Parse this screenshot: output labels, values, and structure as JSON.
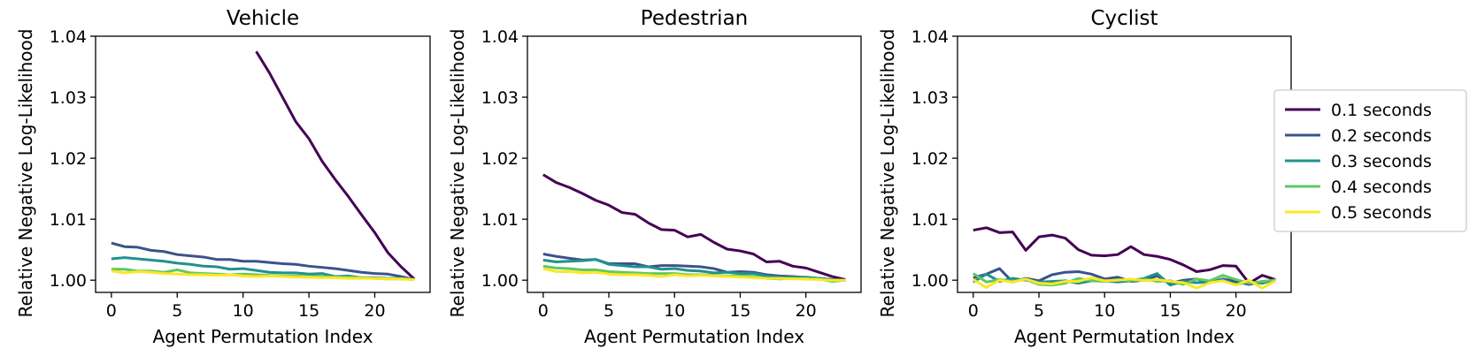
{
  "chart_data": {
    "type": "line",
    "legend": {
      "placement": "right",
      "entries": [
        "0.1 seconds",
        "0.2 seconds",
        "0.3 seconds",
        "0.4 seconds",
        "0.5 seconds"
      ]
    },
    "colors": [
      "#440154",
      "#3b528b",
      "#21918c",
      "#5ec962",
      "#fde725"
    ],
    "panels": [
      {
        "title": "Vehicle",
        "xlabel": "Agent Permutation Index",
        "ylabel": "Relative Negative Log-Likelihood",
        "xlim": [
          -1.2,
          24.2
        ],
        "ylim": [
          0.998,
          1.04
        ],
        "xticks": [
          0,
          5,
          10,
          15,
          20
        ],
        "yticks": [
          1.0,
          1.01,
          1.02,
          1.03,
          1.04
        ],
        "ytick_labels": [
          "1.00",
          "1.01",
          "1.02",
          "1.03",
          "1.04"
        ],
        "grid": false,
        "x": [
          0,
          1,
          2,
          3,
          4,
          5,
          6,
          7,
          8,
          9,
          10,
          11,
          12,
          13,
          14,
          15,
          16,
          17,
          18,
          19,
          20,
          21,
          22,
          23
        ],
        "series": [
          {
            "name": "0.1 seconds",
            "values": [
              null,
              null,
              null,
              null,
              null,
              null,
              null,
              null,
              null,
              null,
              null,
              1.0375,
              1.034,
              1.03,
              1.026,
              1.0232,
              1.0195,
              1.0165,
              1.0137,
              1.0107,
              1.0078,
              1.0045,
              1.0022,
              1.0002
            ]
          },
          {
            "name": "0.2 seconds",
            "values": [
              1.0061,
              1.0055,
              1.0054,
              1.0049,
              1.0047,
              1.0042,
              1.004,
              1.0038,
              1.0034,
              1.0034,
              1.0031,
              1.0031,
              1.0029,
              1.0027,
              1.0026,
              1.0023,
              1.0021,
              1.0019,
              1.0016,
              1.0013,
              1.0011,
              1.001,
              1.0006,
              1.0001
            ]
          },
          {
            "name": "0.3 seconds",
            "values": [
              1.0035,
              1.0037,
              1.0035,
              1.0033,
              1.0031,
              1.0028,
              1.0026,
              1.0023,
              1.0022,
              1.0018,
              1.0019,
              1.0016,
              1.0013,
              1.0012,
              1.0012,
              1.001,
              1.0011,
              1.0006,
              1.0007,
              1.0004,
              1.0004,
              1.0003,
              1.0003,
              1.0001
            ]
          },
          {
            "name": "0.4 seconds",
            "values": [
              1.0018,
              1.0018,
              1.0015,
              1.0015,
              1.0013,
              1.0017,
              1.0012,
              1.0011,
              1.001,
              1.0009,
              1.001,
              1.0009,
              1.0008,
              1.0007,
              1.0007,
              1.0006,
              1.0006,
              1.0005,
              1.0005,
              1.0004,
              1.0003,
              1.0002,
              1.0002,
              1.0001
            ]
          },
          {
            "name": "0.5 seconds",
            "values": [
              1.0015,
              1.0012,
              1.0014,
              1.0013,
              1.0011,
              1.001,
              1.0009,
              1.0009,
              1.0008,
              1.0009,
              1.0007,
              1.0006,
              1.0007,
              1.0006,
              1.0005,
              1.0005,
              1.0004,
              1.0004,
              1.0003,
              1.0003,
              1.0003,
              1.0002,
              1.0002,
              1.0001
            ]
          }
        ]
      },
      {
        "title": "Pedestrian",
        "xlabel": "Agent Permutation Index",
        "ylabel": "Relative Negative Log-Likelihood",
        "xlim": [
          -1.2,
          24.2
        ],
        "ylim": [
          0.998,
          1.04
        ],
        "xticks": [
          0,
          5,
          10,
          15,
          20
        ],
        "yticks": [
          1.0,
          1.01,
          1.02,
          1.03,
          1.04
        ],
        "ytick_labels": [
          "1.00",
          "1.01",
          "1.02",
          "1.03",
          "1.04"
        ],
        "grid": false,
        "x": [
          0,
          1,
          2,
          3,
          4,
          5,
          6,
          7,
          8,
          9,
          10,
          11,
          12,
          13,
          14,
          15,
          16,
          17,
          18,
          19,
          20,
          21,
          22,
          23
        ],
        "series": [
          {
            "name": "0.1 seconds",
            "values": [
              1.0173,
              1.016,
              1.0152,
              1.0142,
              1.0131,
              1.0123,
              1.0111,
              1.0108,
              1.0094,
              1.0083,
              1.0082,
              1.0071,
              1.0075,
              1.0062,
              1.0051,
              1.0048,
              1.0043,
              1.003,
              1.0031,
              1.0023,
              1.002,
              1.0013,
              1.0006,
              1.0001
            ]
          },
          {
            "name": "0.2 seconds",
            "values": [
              1.0043,
              1.0039,
              1.0036,
              1.0033,
              1.0034,
              1.0027,
              1.0027,
              1.0027,
              1.0022,
              1.0024,
              1.0024,
              1.0023,
              1.0022,
              1.0019,
              1.0013,
              1.0014,
              1.0013,
              1.0009,
              1.0007,
              1.0006,
              1.0004,
              1.0003,
              1.0001,
              1.0
            ]
          },
          {
            "name": "0.3 seconds",
            "values": [
              1.0033,
              1.003,
              1.0031,
              1.0032,
              1.0034,
              1.0026,
              1.0024,
              1.0022,
              1.0022,
              1.0018,
              1.0019,
              1.0016,
              1.0015,
              1.0012,
              1.0013,
              1.0011,
              1.0011,
              1.0007,
              1.0005,
              1.0005,
              1.0005,
              1.0003,
              1.0001,
              1.0
            ]
          },
          {
            "name": "0.4 seconds",
            "values": [
              1.0023,
              1.002,
              1.0019,
              1.0017,
              1.0017,
              1.0014,
              1.0013,
              1.0012,
              1.0011,
              1.0011,
              1.0011,
              1.0009,
              1.0009,
              1.0008,
              1.0007,
              1.0007,
              1.0006,
              1.0003,
              1.0002,
              1.0003,
              1.0002,
              1.0002,
              0.9998,
              1.0
            ]
          },
          {
            "name": "0.5 seconds",
            "values": [
              1.0019,
              1.0014,
              1.0014,
              1.0012,
              1.0013,
              1.001,
              1.0009,
              1.0009,
              1.0008,
              1.0006,
              1.0009,
              1.0007,
              1.0008,
              1.0007,
              1.0006,
              1.0005,
              1.0004,
              1.0003,
              1.0003,
              1.0002,
              1.0002,
              1.0001,
              1.0,
              1.0
            ]
          }
        ]
      },
      {
        "title": "Cyclist",
        "xlabel": "Agent Permutation Index",
        "ylabel": "Relative Negative Log-Likelihood",
        "xlim": [
          -1.2,
          24.2
        ],
        "ylim": [
          0.998,
          1.04
        ],
        "xticks": [
          0,
          5,
          10,
          15,
          20
        ],
        "yticks": [
          1.0,
          1.01,
          1.02,
          1.03,
          1.04
        ],
        "ytick_labels": [
          "1.00",
          "1.01",
          "1.02",
          "1.03",
          "1.04"
        ],
        "grid": false,
        "x": [
          0,
          1,
          2,
          3,
          4,
          5,
          6,
          7,
          8,
          9,
          10,
          11,
          12,
          13,
          14,
          15,
          16,
          17,
          18,
          19,
          20,
          21,
          22,
          23
        ],
        "series": [
          {
            "name": "0.1 seconds",
            "values": [
              1.0082,
              1.0086,
              1.0078,
              1.0079,
              1.0049,
              1.0071,
              1.0074,
              1.0069,
              1.005,
              1.0041,
              1.004,
              1.0042,
              1.0055,
              1.0042,
              1.0039,
              1.0034,
              1.0025,
              1.0014,
              1.0017,
              1.0024,
              1.0023,
              0.9995,
              1.0008,
              1.0001
            ]
          },
          {
            "name": "0.2 seconds",
            "values": [
              1.0004,
              1.001,
              1.0019,
              0.9997,
              1.0003,
              0.9999,
              1.0009,
              1.0013,
              1.0014,
              1.001,
              1.0002,
              1.0005,
              0.9998,
              1.0,
              1.0007,
              0.9995,
              1.0,
              1.0002,
              0.9996,
              1.0002,
              0.9998,
              0.9993,
              0.9998,
              1.0
            ]
          },
          {
            "name": "0.3 seconds",
            "values": [
              0.9997,
              1.001,
              0.9998,
              1.0003,
              1.0,
              0.9997,
              0.9998,
              0.9999,
              0.9995,
              0.9999,
              0.9999,
              0.9997,
              0.9999,
              1.0003,
              1.0011,
              0.9992,
              0.9998,
              0.9996,
              0.9997,
              1.0001,
              0.9993,
              0.9997,
              0.9995,
              1.0001
            ]
          },
          {
            "name": "0.4 seconds",
            "values": [
              1.0011,
              0.9997,
              1.0001,
              0.9998,
              1.0001,
              0.9993,
              0.9992,
              0.9995,
              1.0003,
              0.9999,
              0.9998,
              1.0001,
              0.9999,
              1.0002,
              0.9998,
              0.9999,
              0.9993,
              1.0002,
              0.9999,
              1.0008,
              1.0001,
              0.9995,
              0.9998,
              1.0
            ]
          },
          {
            "name": "0.5 seconds",
            "values": [
              1.0001,
              0.9988,
              1.0,
              0.9997,
              1.0002,
              0.9995,
              0.9994,
              0.9998,
              0.9998,
              1.0004,
              0.9999,
              1.0,
              1.0002,
              0.9999,
              1.0001,
              0.9998,
              0.9996,
              0.9987,
              0.9996,
              0.9999,
              0.9992,
              1.0,
              0.9987,
              0.9999
            ]
          }
        ]
      }
    ]
  }
}
